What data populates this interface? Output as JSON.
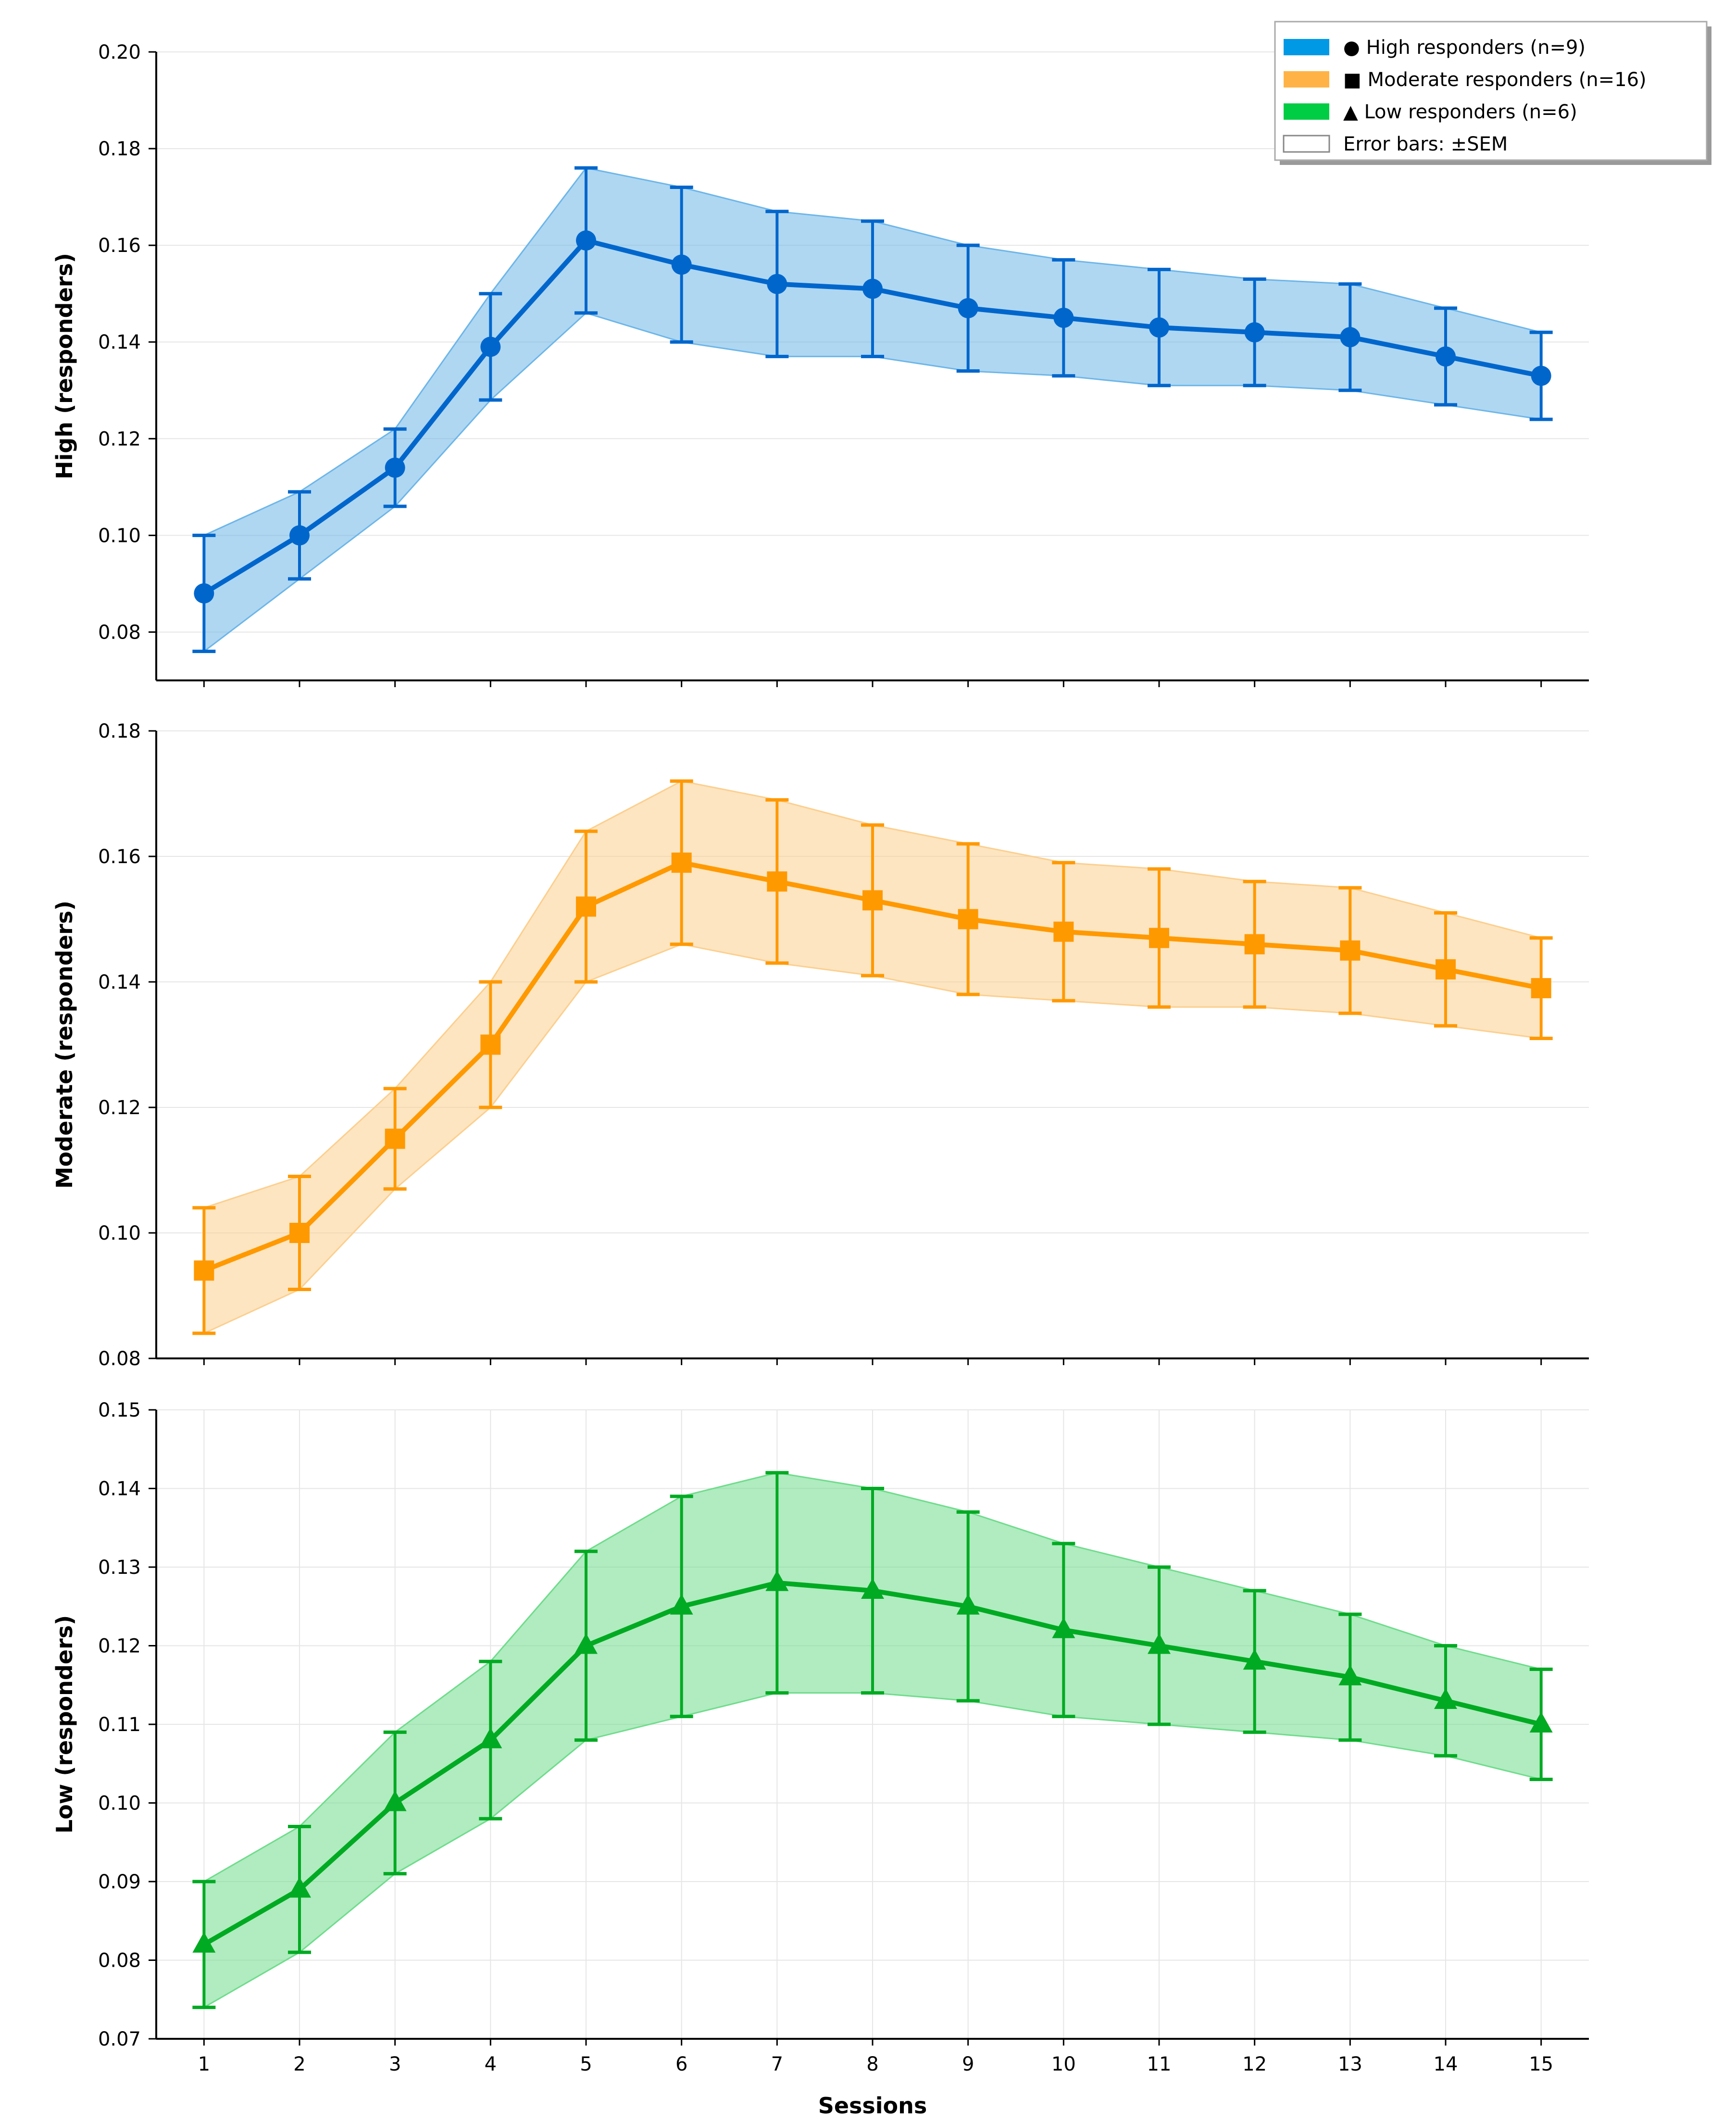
{
  "chart_data": {
    "type": "line",
    "x": [
      1,
      2,
      3,
      4,
      5,
      6,
      7,
      8,
      9,
      10,
      11,
      12,
      13,
      14,
      15
    ],
    "xlabel": "Sessions",
    "x_tick_labels": [
      "1",
      "2",
      "3",
      "4",
      "5",
      "6",
      "7",
      "8",
      "9",
      "10",
      "11",
      "12",
      "13",
      "14",
      "15"
    ],
    "panels": [
      {
        "id": "high",
        "name": "High responders (n=9)",
        "ylabel": "High (responders)",
        "marker": "circle",
        "color": "#0066CC",
        "fill_color": "#6DB6E8",
        "ylim": [
          0.07,
          0.2
        ],
        "yticks": [
          "0.08",
          "0.10",
          "0.12",
          "0.14",
          "0.16",
          "0.18",
          "0.20"
        ],
        "grid": "horizontal",
        "values": [
          0.088,
          0.1,
          0.114,
          0.139,
          0.161,
          0.156,
          0.152,
          0.151,
          0.147,
          0.145,
          0.143,
          0.142,
          0.141,
          0.137,
          0.133
        ],
        "lower": [
          0.076,
          0.091,
          0.106,
          0.128,
          0.146,
          0.14,
          0.137,
          0.137,
          0.134,
          0.133,
          0.131,
          0.131,
          0.13,
          0.127,
          0.124
        ],
        "upper": [
          0.1,
          0.109,
          0.122,
          0.15,
          0.176,
          0.172,
          0.167,
          0.165,
          0.16,
          0.157,
          0.155,
          0.153,
          0.152,
          0.147,
          0.142
        ]
      },
      {
        "id": "moderate",
        "name": "Moderate responders (n=16)",
        "ylabel": "Moderate (responders)",
        "marker": "square",
        "color": "#FF9900",
        "fill_color": "#FCCF8E",
        "ylim": [
          0.08,
          0.18
        ],
        "yticks": [
          "0.08",
          "0.10",
          "0.12",
          "0.14",
          "0.16",
          "0.18"
        ],
        "grid": "horizontal",
        "values": [
          0.094,
          0.1,
          0.115,
          0.13,
          0.152,
          0.159,
          0.156,
          0.153,
          0.15,
          0.148,
          0.147,
          0.146,
          0.145,
          0.142,
          0.139
        ],
        "lower": [
          0.084,
          0.091,
          0.107,
          0.12,
          0.14,
          0.146,
          0.143,
          0.141,
          0.138,
          0.137,
          0.136,
          0.136,
          0.135,
          0.133,
          0.131
        ],
        "upper": [
          0.104,
          0.109,
          0.123,
          0.14,
          0.164,
          0.172,
          0.169,
          0.165,
          0.162,
          0.159,
          0.158,
          0.156,
          0.155,
          0.151,
          0.147
        ]
      },
      {
        "id": "low",
        "name": "Low responders (n=6)",
        "ylabel": "Low (responders)",
        "marker": "triangle",
        "color": "#00AA22",
        "fill_color": "#6FDC8C",
        "ylim": [
          0.07,
          0.15
        ],
        "yticks": [
          "0.07",
          "0.08",
          "0.09",
          "0.10",
          "0.11",
          "0.12",
          "0.13",
          "0.14",
          "0.15"
        ],
        "grid": "both",
        "values": [
          0.082,
          0.089,
          0.1,
          0.108,
          0.12,
          0.125,
          0.128,
          0.127,
          0.125,
          0.122,
          0.12,
          0.118,
          0.116,
          0.113,
          0.11
        ],
        "lower": [
          0.074,
          0.081,
          0.091,
          0.098,
          0.108,
          0.111,
          0.114,
          0.114,
          0.113,
          0.111,
          0.11,
          0.109,
          0.108,
          0.106,
          0.103
        ],
        "upper": [
          0.09,
          0.097,
          0.109,
          0.118,
          0.132,
          0.139,
          0.142,
          0.14,
          0.137,
          0.133,
          0.13,
          0.127,
          0.124,
          0.12,
          0.117
        ]
      }
    ],
    "legend": {
      "placement": "top-right",
      "entries": [
        {
          "label": "● High responders (n=9)",
          "color": "#0099E6",
          "style": "filled"
        },
        {
          "label": "■ Moderate responders (n=16)",
          "color": "#FFB347",
          "style": "filled"
        },
        {
          "label": "▲ Low responders (n=6)",
          "color": "#00CC44",
          "style": "filled"
        },
        {
          "label": "Error bars: ±SEM",
          "color": "#888888",
          "style": "outline"
        }
      ]
    }
  }
}
